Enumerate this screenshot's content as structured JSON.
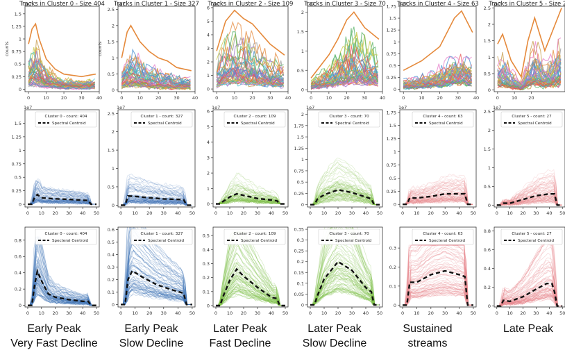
{
  "figure": {
    "tick_label_x": [
      "0",
      "10",
      "20",
      "30",
      "40",
      "50"
    ],
    "colors": {
      "blue": "#3f74b5",
      "green": "#7fbf48",
      "red": "#e8888e",
      "centroid": "#111111",
      "cluster_palette": [
        "#e58a3c",
        "#4a8fd1",
        "#59b36a",
        "#e65555",
        "#9b6fc6",
        "#c79b4a",
        "#e57cc9",
        "#9a9a9a",
        "#c8c84a",
        "#4bc4cf"
      ]
    }
  },
  "captions": [
    {
      "line1": "Early Peak",
      "line2": "Very Fast Decline"
    },
    {
      "line1": "Early Peak",
      "line2": "Slow Decline"
    },
    {
      "line1": "Later Peak",
      "line2": "Fast Decline"
    },
    {
      "line1": "Later Peak",
      "line2": "Slow Decline"
    },
    {
      "line1": "Sustained",
      "line2": "streams"
    },
    {
      "line1": "Late Peak",
      "line2": ""
    }
  ],
  "chart_data": [
    {
      "type": "line",
      "row": 1,
      "col": 1,
      "title": "Tracks in Cluster 0 - Size 404",
      "ylabel": "counts",
      "multiplier": "1e7",
      "xlim": [
        -2,
        40
      ],
      "ylim": [
        -0.05,
        1.65
      ],
      "yticks": [
        0.0,
        0.25,
        0.5,
        0.75,
        1.0,
        1.25,
        1.5
      ],
      "xticks": [
        0,
        10,
        20,
        30,
        40
      ],
      "centroid": [
        [
          0,
          0.9
        ],
        [
          2,
          1.2
        ],
        [
          4,
          1.3
        ],
        [
          6,
          1.0
        ],
        [
          10,
          0.6
        ],
        [
          15,
          0.4
        ],
        [
          20,
          0.3
        ],
        [
          30,
          0.25
        ],
        [
          38,
          0.3
        ]
      ]
    },
    {
      "type": "line",
      "row": 1,
      "col": 2,
      "title": "Tracks in Cluster 1 - Size 327",
      "ylabel": "counts",
      "multiplier": "1e7",
      "xlim": [
        -2,
        40
      ],
      "ylim": [
        -0.05,
        2.6
      ],
      "yticks": [
        0.0,
        0.5,
        1.0,
        1.5,
        2.0,
        2.5
      ],
      "xticks": [
        0,
        10,
        20,
        30,
        40
      ],
      "centroid": [
        [
          0,
          1.0
        ],
        [
          3,
          1.8
        ],
        [
          5,
          2.0
        ],
        [
          10,
          1.5
        ],
        [
          15,
          1.2
        ],
        [
          20,
          1.0
        ],
        [
          25,
          0.9
        ],
        [
          30,
          0.7
        ],
        [
          38,
          0.6
        ]
      ]
    },
    {
      "type": "line",
      "row": 1,
      "col": 3,
      "title": "Tracks in Cluster 2 - Size 109",
      "ylabel": "",
      "multiplier": "1e7",
      "xlim": [
        -2,
        40
      ],
      "ylim": [
        -0.2,
        6.1
      ],
      "yticks": [
        0,
        1,
        2,
        3,
        4,
        5,
        6
      ],
      "xticks": [
        0,
        10,
        20,
        30,
        40
      ],
      "centroid": [
        [
          0,
          2.8
        ],
        [
          5,
          5.0
        ],
        [
          10,
          5.8
        ],
        [
          15,
          5.2
        ],
        [
          20,
          4.8
        ],
        [
          30,
          3.3
        ],
        [
          38,
          2.5
        ]
      ]
    },
    {
      "type": "line",
      "row": 1,
      "col": 4,
      "title": "Tracks in Cluster 3 - Size 70",
      "ylabel": "",
      "multiplier": "1e7",
      "xlim": [
        -2,
        40
      ],
      "ylim": [
        -0.05,
        2.15
      ],
      "yticks": [
        0.0,
        0.5,
        1.0,
        1.5,
        2.0
      ],
      "xticks": [
        0,
        10,
        20,
        30,
        40
      ],
      "centroid": [
        [
          0,
          0.3
        ],
        [
          10,
          0.9
        ],
        [
          15,
          1.3
        ],
        [
          20,
          1.8
        ],
        [
          24,
          2.0
        ],
        [
          30,
          1.6
        ],
        [
          38,
          1.3
        ]
      ]
    },
    {
      "type": "line",
      "row": 1,
      "col": 5,
      "title": "Tracks in Cluster 4 - Size 63",
      "ylabel": "",
      "multiplier": "1e7",
      "xlim": [
        -2,
        40
      ],
      "ylim": [
        -0.05,
        1.75
      ],
      "yticks": [
        0.0,
        0.25,
        0.5,
        0.75,
        1.0,
        1.25,
        1.5,
        1.75
      ],
      "xticks": [
        0,
        10,
        20,
        30,
        40
      ],
      "centroid": [
        [
          0,
          0.4
        ],
        [
          10,
          0.6
        ],
        [
          20,
          0.9
        ],
        [
          28,
          1.5
        ],
        [
          32,
          1.65
        ],
        [
          38,
          1.2
        ]
      ]
    },
    {
      "type": "line",
      "row": 1,
      "col": 6,
      "title": "Tracks in Cluster 5 - Size 27",
      "ylabel": "",
      "multiplier": "1e7",
      "xlim": [
        -2,
        40
      ],
      "ylim": [
        -0.05,
        2.55
      ],
      "yticks": [
        0.0,
        0.5,
        1.0,
        1.5,
        2.0,
        2.5
      ],
      "xticks": [
        0,
        10,
        20
      ],
      "centroid": [
        [
          0,
          1.4
        ],
        [
          3,
          1.7
        ],
        [
          8,
          0.9
        ],
        [
          14,
          0.4
        ],
        [
          18,
          1.5
        ],
        [
          22,
          2.2
        ],
        [
          28,
          1.2
        ],
        [
          38,
          2.5
        ]
      ]
    },
    {
      "type": "line",
      "row": 2,
      "col": 1,
      "legend": "Cluster 0 - count: 404",
      "series_name": "Spectral Centroid",
      "multiplier": "1e7",
      "xlim": [
        -2,
        52
      ],
      "ylim": [
        -0.05,
        1.75
      ],
      "yticks": [
        0.0,
        0.25,
        0.5,
        0.75,
        1.0,
        1.25,
        1.5
      ],
      "xticks": [
        0,
        10,
        20,
        30,
        40,
        50
      ],
      "centroid": [
        [
          0,
          0
        ],
        [
          3,
          0
        ],
        [
          5,
          0.13
        ],
        [
          7,
          0.18
        ],
        [
          10,
          0.12
        ],
        [
          20,
          0.1
        ],
        [
          30,
          0.09
        ],
        [
          44,
          0.07
        ],
        [
          46,
          0
        ],
        [
          50,
          0
        ]
      ]
    },
    {
      "type": "line",
      "row": 2,
      "col": 2,
      "legend": "Cluster 1 - count: 327",
      "series_name": "Spectral Centroid",
      "multiplier": "1e7",
      "xlim": [
        -2,
        52
      ],
      "ylim": [
        -0.05,
        2.6
      ],
      "yticks": [
        0.0,
        0.5,
        1.0,
        1.5,
        2.0,
        2.5
      ],
      "xticks": [
        0,
        10,
        20,
        30,
        40,
        50
      ],
      "centroid": [
        [
          0,
          0
        ],
        [
          3,
          0
        ],
        [
          5,
          0.25
        ],
        [
          10,
          0.24
        ],
        [
          20,
          0.2
        ],
        [
          30,
          0.17
        ],
        [
          44,
          0.15
        ],
        [
          46,
          0
        ],
        [
          50,
          0
        ]
      ]
    },
    {
      "type": "line",
      "row": 2,
      "col": 3,
      "legend": "Cluster 2 - count: 109",
      "series_name": "Spectral Centroid",
      "multiplier": "1e7",
      "xlim": [
        -2,
        52
      ],
      "ylim": [
        -0.2,
        6.1
      ],
      "yticks": [
        0,
        1,
        2,
        3,
        4,
        5,
        6
      ],
      "xticks": [
        0,
        10,
        20,
        30,
        40,
        50
      ],
      "centroid": [
        [
          0,
          0
        ],
        [
          3,
          0
        ],
        [
          5,
          0.15
        ],
        [
          10,
          0.45
        ],
        [
          15,
          0.65
        ],
        [
          20,
          0.55
        ],
        [
          30,
          0.35
        ],
        [
          40,
          0.25
        ],
        [
          44,
          0.2
        ],
        [
          46,
          0
        ],
        [
          50,
          0
        ]
      ]
    },
    {
      "type": "line",
      "row": 2,
      "col": 4,
      "legend": "Cluster 3 - count: 70",
      "series_name": "Spectral Centroid",
      "multiplier": "1e7",
      "xlim": [
        -2,
        52
      ],
      "ylim": [
        -0.05,
        2.1
      ],
      "yticks": [
        0.0,
        0.25,
        0.5,
        0.75,
        1.0,
        1.25,
        1.5,
        1.75,
        2.0
      ],
      "xticks": [
        0,
        10,
        20,
        30,
        40,
        50
      ],
      "centroid": [
        [
          0,
          0
        ],
        [
          3,
          0
        ],
        [
          5,
          0.12
        ],
        [
          10,
          0.22
        ],
        [
          20,
          0.33
        ],
        [
          30,
          0.27
        ],
        [
          40,
          0.17
        ],
        [
          44,
          0.13
        ],
        [
          46,
          0
        ],
        [
          50,
          0
        ]
      ]
    },
    {
      "type": "line",
      "row": 2,
      "col": 5,
      "legend": "Cluster 4 - count: 63",
      "series_name": "Spectral Centroid",
      "multiplier": "1e7",
      "xlim": [
        -2,
        52
      ],
      "ylim": [
        -0.05,
        1.8
      ],
      "yticks": [
        0.0,
        0.25,
        0.5,
        0.75,
        1.0,
        1.25,
        1.5,
        1.75
      ],
      "xticks": [
        0,
        10,
        20,
        30,
        40,
        50
      ],
      "centroid": [
        [
          0,
          0
        ],
        [
          3,
          0
        ],
        [
          5,
          0.12
        ],
        [
          10,
          0.12
        ],
        [
          20,
          0.15
        ],
        [
          30,
          0.2
        ],
        [
          40,
          0.2
        ],
        [
          44,
          0.2
        ],
        [
          46,
          0
        ],
        [
          50,
          0
        ]
      ]
    },
    {
      "type": "line",
      "row": 2,
      "col": 6,
      "legend": "Cluster 5 - count: 27",
      "series_name": "Spectral Centroid",
      "multiplier": "1e7",
      "xlim": [
        -2,
        52
      ],
      "ylim": [
        -0.05,
        2.55
      ],
      "yticks": [
        0.0,
        0.5,
        1.0,
        1.5,
        2.0,
        2.5
      ],
      "xticks": [
        0,
        10,
        20,
        30,
        40,
        50
      ],
      "centroid": [
        [
          0,
          0
        ],
        [
          3,
          0
        ],
        [
          5,
          0.05
        ],
        [
          10,
          0.05
        ],
        [
          20,
          0.15
        ],
        [
          30,
          0.25
        ],
        [
          40,
          0.3
        ],
        [
          44,
          0.3
        ],
        [
          46,
          0
        ],
        [
          50,
          0
        ]
      ]
    },
    {
      "type": "line",
      "row": 3,
      "col": 1,
      "legend": "Cluster 0 - count: 404",
      "series_name": "Specteral Centroid",
      "xlim": [
        -2,
        52
      ],
      "ylim": [
        -0.02,
        0.96
      ],
      "yticks": [
        0.0,
        0.2,
        0.4,
        0.6,
        0.8
      ],
      "xticks": [
        0,
        10,
        20,
        30,
        40,
        50
      ],
      "centroid": [
        [
          0,
          0
        ],
        [
          3,
          0
        ],
        [
          5,
          0.25
        ],
        [
          7,
          0.42
        ],
        [
          10,
          0.3
        ],
        [
          15,
          0.14
        ],
        [
          20,
          0.1
        ],
        [
          30,
          0.07
        ],
        [
          40,
          0.05
        ],
        [
          44,
          0.05
        ],
        [
          46,
          0
        ],
        [
          50,
          0
        ]
      ]
    },
    {
      "type": "line",
      "row": 3,
      "col": 2,
      "legend": "Cluster 1 - count: 327",
      "series_name": "Specteral Centroid",
      "xlim": [
        -2,
        52
      ],
      "ylim": [
        -0.02,
        0.62
      ],
      "yticks": [
        0.0,
        0.1,
        0.2,
        0.3,
        0.4,
        0.5,
        0.6
      ],
      "xticks": [
        0,
        10,
        20,
        30,
        40,
        50
      ],
      "centroid": [
        [
          0,
          0
        ],
        [
          3,
          0
        ],
        [
          5,
          0.2
        ],
        [
          8,
          0.27
        ],
        [
          15,
          0.22
        ],
        [
          25,
          0.16
        ],
        [
          35,
          0.12
        ],
        [
          44,
          0.09
        ],
        [
          46,
          0
        ],
        [
          50,
          0
        ]
      ]
    },
    {
      "type": "line",
      "row": 3,
      "col": 3,
      "legend": "Cluster 2 - count: 109",
      "series_name": "Specteral Centroid",
      "xlim": [
        -2,
        52
      ],
      "ylim": [
        -0.01,
        0.56
      ],
      "yticks": [
        0.0,
        0.1,
        0.2,
        0.3,
        0.4,
        0.5
      ],
      "xticks": [
        0,
        10,
        20,
        30,
        40,
        50
      ],
      "centroid": [
        [
          0,
          0
        ],
        [
          3,
          0
        ],
        [
          5,
          0.06
        ],
        [
          10,
          0.18
        ],
        [
          15,
          0.26
        ],
        [
          20,
          0.21
        ],
        [
          30,
          0.13
        ],
        [
          40,
          0.06
        ],
        [
          44,
          0.05
        ],
        [
          46,
          0
        ],
        [
          50,
          0
        ]
      ]
    },
    {
      "type": "line",
      "row": 3,
      "col": 4,
      "legend": "Cluster 3 - count: 70",
      "series_name": "Specteral Centroid",
      "xlim": [
        -2,
        52
      ],
      "ylim": [
        -0.01,
        0.36
      ],
      "yticks": [
        0.0,
        0.05,
        0.1,
        0.15,
        0.2,
        0.25,
        0.3,
        0.35
      ],
      "xticks": [
        0,
        10,
        20,
        30,
        40,
        50
      ],
      "centroid": [
        [
          0,
          0
        ],
        [
          3,
          0
        ],
        [
          5,
          0.04
        ],
        [
          10,
          0.12
        ],
        [
          20,
          0.2
        ],
        [
          30,
          0.16
        ],
        [
          40,
          0.08
        ],
        [
          44,
          0.06
        ],
        [
          46,
          0
        ],
        [
          50,
          0
        ]
      ]
    },
    {
      "type": "line",
      "row": 3,
      "col": 5,
      "legend": "Cluster 4 - count: 63",
      "series_name": "Specteral Centroid",
      "xlim": [
        -2,
        52
      ],
      "ylim": [
        -0.01,
        0.41
      ],
      "yticks": [
        0.0,
        0.1,
        0.2,
        0.3
      ],
      "xticks": [
        0,
        10,
        20,
        30,
        40,
        50
      ],
      "centroid": [
        [
          0,
          0
        ],
        [
          3,
          0
        ],
        [
          5,
          0.12
        ],
        [
          10,
          0.12
        ],
        [
          20,
          0.16
        ],
        [
          30,
          0.18
        ],
        [
          40,
          0.16
        ],
        [
          44,
          0.15
        ],
        [
          46,
          0
        ],
        [
          50,
          0
        ]
      ]
    },
    {
      "type": "line",
      "row": 3,
      "col": 6,
      "legend": "Cluster 5 - count: 27",
      "series_name": "Specteral Centroid",
      "xlim": [
        -2,
        52
      ],
      "ylim": [
        -0.01,
        0.84
      ],
      "yticks": [
        0.0,
        0.2,
        0.4,
        0.6,
        0.8
      ],
      "xticks": [
        0,
        10,
        20,
        30,
        40,
        50
      ],
      "centroid": [
        [
          0,
          0
        ],
        [
          3,
          0
        ],
        [
          5,
          0.06
        ],
        [
          10,
          0.05
        ],
        [
          20,
          0.1
        ],
        [
          30,
          0.18
        ],
        [
          38,
          0.24
        ],
        [
          42,
          0.24
        ],
        [
          44,
          0.15
        ],
        [
          46,
          0
        ],
        [
          50,
          0
        ]
      ]
    }
  ]
}
